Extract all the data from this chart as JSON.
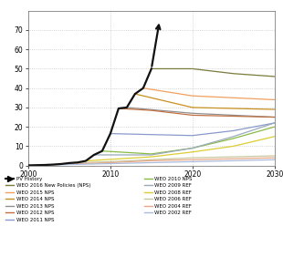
{
  "pv_history": {
    "years": [
      2000,
      2001,
      2002,
      2003,
      2004,
      2005,
      2006,
      2007,
      2008,
      2009,
      2010,
      2011,
      2012,
      2013,
      2014,
      2015,
      2016
    ],
    "values": [
      0.1,
      0.2,
      0.3,
      0.5,
      0.8,
      1.3,
      1.6,
      2.4,
      5.5,
      7.5,
      16.5,
      29.5,
      30.0,
      37.0,
      40.0,
      50.0,
      75.0
    ],
    "color": "#111111",
    "lw": 1.6
  },
  "weo_series": [
    {
      "label": "WEO 2016 New Policies (NPS)",
      "color": "#7A7A3A",
      "data": [
        [
          2015,
          50.0
        ],
        [
          2020,
          50.0
        ],
        [
          2025,
          47.5
        ],
        [
          2030,
          46.0
        ]
      ]
    },
    {
      "label": "WEO 2015 NPS",
      "color": "#F0A060",
      "data": [
        [
          2014,
          40.0
        ],
        [
          2020,
          36.0
        ],
        [
          2025,
          35.0
        ],
        [
          2030,
          34.0
        ]
      ]
    },
    {
      "label": "WEO 2014 NPS",
      "color": "#C89020",
      "data": [
        [
          2013,
          37.0
        ],
        [
          2020,
          30.0
        ],
        [
          2025,
          29.5
        ],
        [
          2030,
          29.0
        ]
      ]
    },
    {
      "label": "WEO 2013 NPS",
      "color": "#909090",
      "data": [
        [
          2012,
          30.0
        ],
        [
          2020,
          27.0
        ],
        [
          2025,
          26.0
        ],
        [
          2030,
          25.0
        ]
      ]
    },
    {
      "label": "WEO 2012 NPS",
      "color": "#C07040",
      "data": [
        [
          2011,
          29.5
        ],
        [
          2015,
          28.5
        ],
        [
          2020,
          26.0
        ],
        [
          2025,
          25.5
        ],
        [
          2030,
          25.0
        ]
      ]
    },
    {
      "label": "WEO 2011 NPS",
      "color": "#8899CC",
      "data": [
        [
          2010,
          16.5
        ],
        [
          2015,
          16.0
        ],
        [
          2020,
          15.5
        ],
        [
          2025,
          18.0
        ],
        [
          2030,
          22.0
        ]
      ]
    },
    {
      "label": "WEO 2010 NPS",
      "color": "#88BB44",
      "data": [
        [
          2009,
          7.5
        ],
        [
          2015,
          6.0
        ],
        [
          2020,
          9.0
        ],
        [
          2025,
          14.0
        ],
        [
          2030,
          20.0
        ]
      ]
    },
    {
      "label": "WEO 2009 REF",
      "color": "#99AABB",
      "data": [
        [
          2008,
          5.5
        ],
        [
          2015,
          5.5
        ],
        [
          2020,
          9.0
        ],
        [
          2025,
          15.0
        ],
        [
          2030,
          22.0
        ]
      ]
    },
    {
      "label": "WEO 2008 REF",
      "color": "#DDCC33",
      "data": [
        [
          2007,
          2.4
        ],
        [
          2015,
          4.5
        ],
        [
          2020,
          7.0
        ],
        [
          2025,
          10.0
        ],
        [
          2030,
          15.0
        ]
      ]
    },
    {
      "label": "WEO 2006 REF",
      "color": "#C8C8A0",
      "data": [
        [
          2005,
          1.3
        ],
        [
          2010,
          2.0
        ],
        [
          2015,
          3.0
        ],
        [
          2020,
          4.0
        ],
        [
          2025,
          4.5
        ],
        [
          2030,
          5.0
        ]
      ]
    },
    {
      "label": "WEO 2004 REF",
      "color": "#E8A888",
      "data": [
        [
          2003,
          0.5
        ],
        [
          2010,
          1.5
        ],
        [
          2015,
          2.5
        ],
        [
          2020,
          3.0
        ],
        [
          2025,
          3.5
        ],
        [
          2030,
          4.0
        ]
      ]
    },
    {
      "label": "WEO 2002 REF",
      "color": "#AABBDD",
      "data": [
        [
          2001,
          0.2
        ],
        [
          2010,
          1.0
        ],
        [
          2015,
          1.5
        ],
        [
          2020,
          2.0
        ],
        [
          2025,
          2.5
        ],
        [
          2030,
          3.0
        ]
      ]
    }
  ],
  "xlim": [
    2000,
    2030
  ],
  "ylim": [
    0,
    80
  ],
  "xticks": [
    2000,
    2010,
    2020,
    2030
  ],
  "yticks": [
    0,
    10,
    20,
    30,
    40,
    50,
    60,
    70
  ],
  "bg_color": "#FFFFFF",
  "grid_color": "#BBBBBB",
  "lw_series": 0.9,
  "figsize": [
    3.1,
    2.93
  ],
  "dpi": 100
}
